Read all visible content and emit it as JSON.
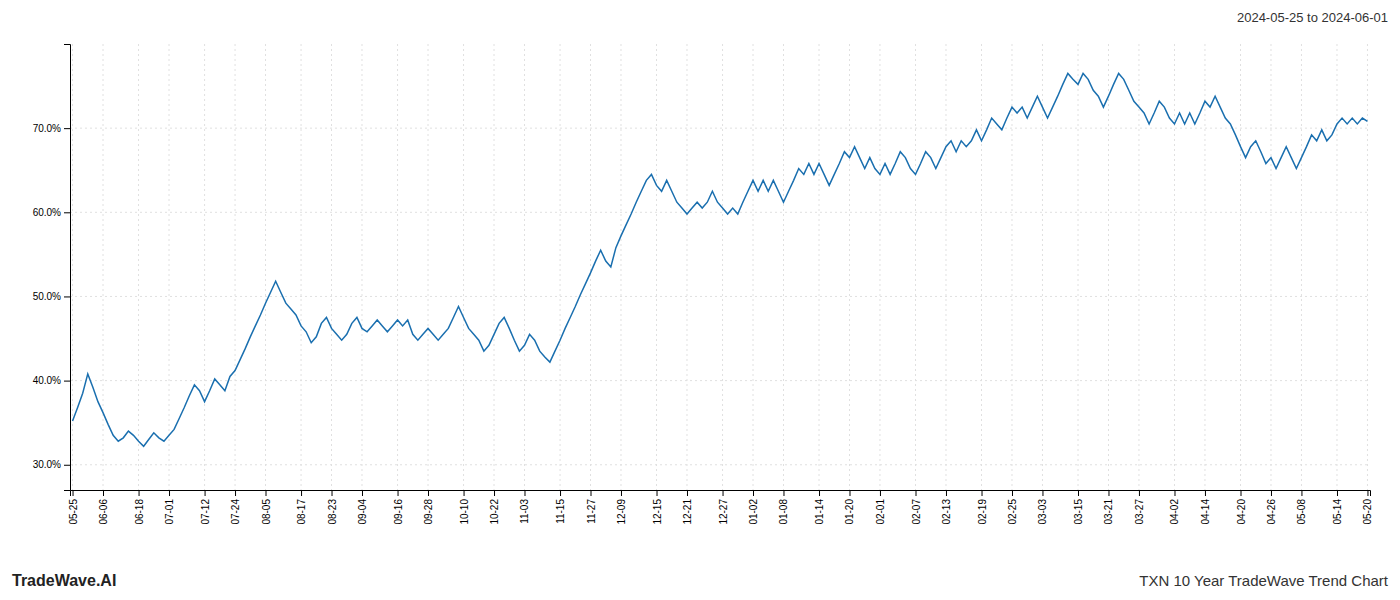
{
  "chart_data": {
    "type": "line",
    "title": "TXN 10 Year TradeWave Trend Chart",
    "subtitle": "2024-05-25 to 2024-06-01",
    "annotations": [
      "TradeWave.AI"
    ],
    "color": "#1a6faf",
    "grid": true,
    "ylim": [
      27.0,
      80.0
    ],
    "yticks": [
      {
        "value": 30.0,
        "label": "30.0%"
      },
      {
        "value": 40.0,
        "label": "40.0%"
      },
      {
        "value": 50.0,
        "label": "50.0%"
      },
      {
        "value": 60.0,
        "label": "60.0%"
      },
      {
        "value": 70.0,
        "label": "70.0%"
      }
    ],
    "categories": [
      "05-25",
      null,
      null,
      null,
      null,
      null,
      "06-06",
      null,
      null,
      null,
      null,
      null,
      null,
      "06-18",
      null,
      null,
      null,
      null,
      null,
      "07-01",
      null,
      null,
      null,
      null,
      null,
      null,
      "07-12",
      null,
      null,
      null,
      null,
      null,
      "07-24",
      null,
      null,
      null,
      null,
      null,
      "08-05",
      null,
      null,
      null,
      null,
      null,
      null,
      "08-17",
      null,
      null,
      null,
      null,
      null,
      "08-23",
      null,
      null,
      null,
      null,
      null,
      "09-04",
      null,
      null,
      null,
      null,
      null,
      null,
      "09-16",
      null,
      null,
      null,
      null,
      null,
      "09-28",
      null,
      null,
      null,
      null,
      null,
      null,
      "10-10",
      null,
      null,
      null,
      null,
      null,
      "10-22",
      null,
      null,
      null,
      null,
      null,
      "11-03",
      null,
      null,
      null,
      null,
      null,
      null,
      "11-15",
      null,
      null,
      null,
      null,
      null,
      "11-27",
      null,
      null,
      null,
      null,
      null,
      "12-09",
      null,
      null,
      null,
      null,
      null,
      null,
      "12-15",
      null,
      null,
      null,
      null,
      null,
      "12-21",
      null,
      null,
      null,
      null,
      null,
      null,
      "12-27",
      null,
      null,
      null,
      null,
      null,
      "01-02",
      null,
      null,
      null,
      null,
      null,
      "01-08",
      null,
      null,
      null,
      null,
      null,
      null,
      "01-14",
      null,
      null,
      null,
      null,
      null,
      "01-20",
      null,
      null,
      null,
      null,
      null,
      "02-01",
      null,
      null,
      null,
      null,
      null,
      null,
      "02-07",
      null,
      null,
      null,
      null,
      null,
      "02-13",
      null,
      null,
      null,
      null,
      null,
      null,
      "02-19",
      null,
      null,
      null,
      null,
      null,
      "02-25",
      null,
      null,
      null,
      null,
      null,
      "03-03",
      null,
      null,
      null,
      null,
      null,
      null,
      "03-15",
      null,
      null,
      null,
      null,
      null,
      "03-21",
      null,
      null,
      null,
      null,
      null,
      "03-27",
      null,
      null,
      null,
      null,
      null,
      null,
      "04-02",
      null,
      null,
      null,
      null,
      null,
      "04-14",
      null,
      null,
      null,
      null,
      null,
      null,
      "04-20",
      null,
      null,
      null,
      null,
      null,
      "04-26",
      null,
      null,
      null,
      null,
      null,
      "05-08",
      null,
      null,
      null,
      null,
      null,
      null,
      "05-14",
      null,
      null,
      null,
      null,
      null,
      "05-20"
    ],
    "values": [
      35.2,
      36.8,
      38.5,
      40.8,
      39.2,
      37.5,
      36.2,
      34.8,
      33.5,
      32.8,
      33.2,
      34.0,
      33.5,
      32.8,
      32.2,
      33.0,
      33.8,
      33.2,
      32.8,
      33.5,
      34.2,
      35.5,
      36.8,
      38.2,
      39.5,
      38.8,
      37.5,
      38.8,
      40.2,
      39.5,
      38.8,
      40.5,
      41.2,
      42.5,
      43.8,
      45.2,
      46.5,
      47.8,
      49.2,
      50.5,
      51.8,
      50.5,
      49.2,
      48.5,
      47.8,
      46.5,
      45.8,
      44.5,
      45.2,
      46.8,
      47.5,
      46.2,
      45.5,
      44.8,
      45.5,
      46.8,
      47.5,
      46.2,
      45.8,
      46.5,
      47.2,
      46.5,
      45.8,
      46.5,
      47.2,
      46.5,
      47.2,
      45.5,
      44.8,
      45.5,
      46.2,
      45.5,
      44.8,
      45.5,
      46.2,
      47.5,
      48.8,
      47.5,
      46.2,
      45.5,
      44.8,
      43.5,
      44.2,
      45.5,
      46.8,
      47.5,
      46.2,
      44.8,
      43.5,
      44.2,
      45.5,
      44.8,
      43.5,
      42.8,
      42.2,
      43.5,
      44.8,
      46.2,
      47.5,
      48.8,
      50.2,
      51.5,
      52.8,
      54.2,
      55.5,
      54.2,
      53.5,
      55.8,
      57.2,
      58.5,
      59.8,
      61.2,
      62.5,
      63.8,
      64.5,
      63.2,
      62.5,
      63.8,
      62.5,
      61.2,
      60.5,
      59.8,
      60.5,
      61.2,
      60.5,
      61.2,
      62.5,
      61.2,
      60.5,
      59.8,
      60.5,
      59.8,
      61.2,
      62.5,
      63.8,
      62.5,
      63.8,
      62.5,
      63.8,
      62.5,
      61.2,
      62.5,
      63.8,
      65.2,
      64.5,
      65.8,
      64.5,
      65.8,
      64.5,
      63.2,
      64.5,
      65.8,
      67.2,
      66.5,
      67.8,
      66.5,
      65.2,
      66.5,
      65.2,
      64.5,
      65.8,
      64.5,
      65.8,
      67.2,
      66.5,
      65.2,
      64.5,
      65.8,
      67.2,
      66.5,
      65.2,
      66.5,
      67.8,
      68.5,
      67.2,
      68.5,
      67.8,
      68.5,
      69.8,
      68.5,
      69.8,
      71.2,
      70.5,
      69.8,
      71.2,
      72.5,
      71.8,
      72.5,
      71.2,
      72.5,
      73.8,
      72.5,
      71.2,
      72.5,
      73.8,
      75.2,
      76.5,
      75.8,
      75.2,
      76.5,
      75.8,
      74.5,
      73.8,
      72.5,
      73.8,
      75.2,
      76.5,
      75.8,
      74.5,
      73.2,
      72.5,
      71.8,
      70.5,
      71.8,
      73.2,
      72.5,
      71.2,
      70.5,
      71.8,
      70.5,
      71.8,
      70.5,
      71.8,
      73.2,
      72.5,
      73.8,
      72.5,
      71.2,
      70.5,
      69.2,
      67.8,
      66.5,
      67.8,
      68.5,
      67.2,
      65.8,
      66.5,
      65.2,
      66.5,
      67.8,
      66.5,
      65.2,
      66.5,
      67.8,
      69.2,
      68.5,
      69.8,
      68.5,
      69.2,
      70.5,
      71.2,
      70.5,
      71.2,
      70.5,
      71.2,
      70.8
    ]
  }
}
